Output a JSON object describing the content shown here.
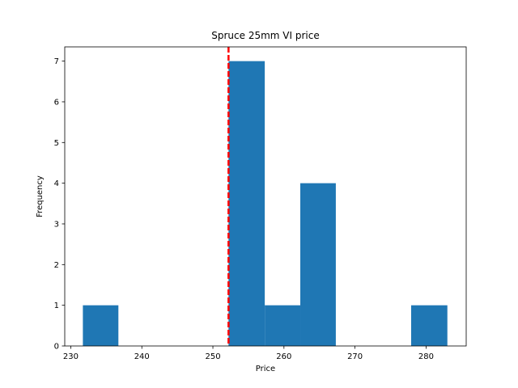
{
  "chart_data": {
    "type": "bar",
    "title": "Spruce 25mm VI price",
    "xlabel": "Price",
    "ylabel": "Frequency",
    "xlim": [
      229.15,
      285.65
    ],
    "ylim": [
      0,
      7.35
    ],
    "xticks": [
      230,
      240,
      250,
      260,
      270,
      280
    ],
    "yticks": [
      0,
      1,
      2,
      3,
      4,
      5,
      6,
      7
    ],
    "bins": [
      {
        "x0": 231.7,
        "x1": 236.7,
        "count": 1
      },
      {
        "x0": 236.7,
        "x1": 241.7,
        "count": 0
      },
      {
        "x0": 241.7,
        "x1": 246.7,
        "count": 0
      },
      {
        "x0": 246.7,
        "x1": 252.2,
        "count": 0
      },
      {
        "x0": 252.2,
        "x1": 257.3,
        "count": 7
      },
      {
        "x0": 257.3,
        "x1": 262.3,
        "count": 1
      },
      {
        "x0": 262.3,
        "x1": 267.3,
        "count": 4
      },
      {
        "x0": 267.3,
        "x1": 272.4,
        "count": 0
      },
      {
        "x0": 272.4,
        "x1": 277.9,
        "count": 0
      },
      {
        "x0": 277.9,
        "x1": 283.0,
        "count": 1
      }
    ],
    "reference_line": {
      "x": 252.2,
      "color": "#ff0000",
      "style": "dashed"
    },
    "bar_color": "#1f77b4",
    "grid": false,
    "legend": "none"
  }
}
